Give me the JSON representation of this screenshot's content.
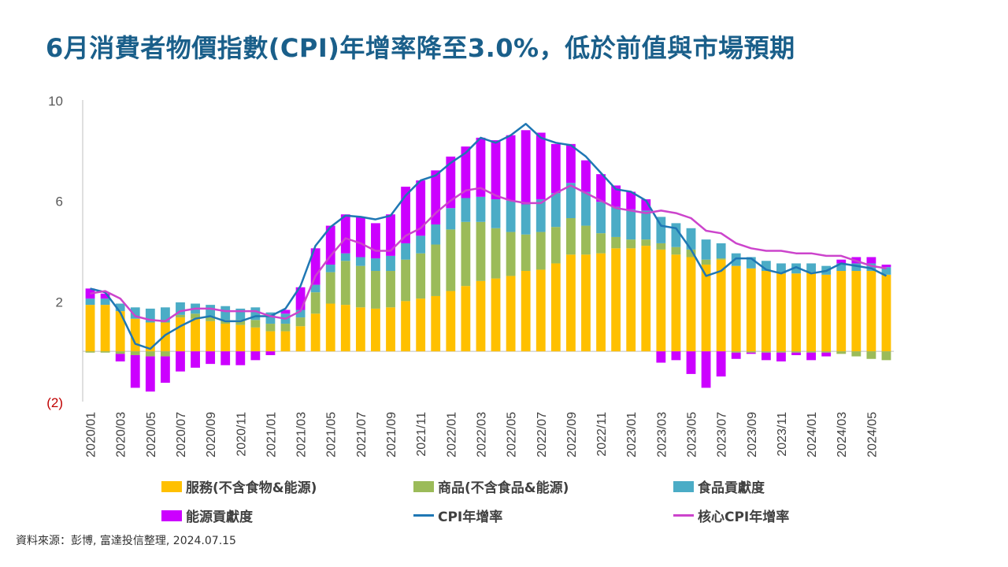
{
  "title": "6月消費者物價指數(CPI)年增率降至3.0%，低於前值與市場預期",
  "source": "資料來源：彭博, 富達投信整理, 2024.07.15",
  "colors": {
    "services": "#ffc000",
    "goods": "#9bbb59",
    "food": "#4bacc6",
    "energy": "#cc00ff",
    "cpi": "#1f77b4",
    "core": "#cc44cc",
    "negative_tick": "#c00000"
  },
  "legend": [
    {
      "key": "services",
      "label": "服務(不含食物&能源)",
      "kind": "bar"
    },
    {
      "key": "goods",
      "label": "商品(不含食品&能源)",
      "kind": "bar"
    },
    {
      "key": "food",
      "label": "食品貢獻度",
      "kind": "bar"
    },
    {
      "key": "energy",
      "label": "能源貢獻度",
      "kind": "bar"
    },
    {
      "key": "cpi",
      "label": "CPI年增率",
      "kind": "line"
    },
    {
      "key": "core",
      "label": "核心CPI年增率",
      "kind": "line"
    }
  ],
  "chart_data": {
    "type": "bar",
    "stacked": true,
    "title": "",
    "xlabel": "",
    "ylabel": "",
    "ylim": [
      -2,
      10
    ],
    "y_ticks": [
      {
        "value": 10,
        "label": "10"
      },
      {
        "value": 6,
        "label": "6"
      },
      {
        "value": 2,
        "label": "2"
      },
      {
        "value": -2,
        "label": "(2)"
      }
    ],
    "x_tick_labels": [
      "2020/01",
      "2020/03",
      "2020/05",
      "2020/07",
      "2020/09",
      "2020/11",
      "2021/01",
      "2021/03",
      "2021/05",
      "2021/07",
      "2021/09",
      "2021/11",
      "2022/01",
      "2022/03",
      "2022/05",
      "2022/07",
      "2022/09",
      "2022/11",
      "2023/01",
      "2023/03",
      "2023/05",
      "2023/07",
      "2023/09",
      "2023/11",
      "2024/01",
      "2024/03",
      "2024/05"
    ],
    "categories": [
      "2020/01",
      "2020/02",
      "2020/03",
      "2020/04",
      "2020/05",
      "2020/06",
      "2020/07",
      "2020/08",
      "2020/09",
      "2020/10",
      "2020/11",
      "2020/12",
      "2021/01",
      "2021/02",
      "2021/03",
      "2021/04",
      "2021/05",
      "2021/06",
      "2021/07",
      "2021/08",
      "2021/09",
      "2021/10",
      "2021/11",
      "2021/12",
      "2022/01",
      "2022/02",
      "2022/03",
      "2022/04",
      "2022/05",
      "2022/06",
      "2022/07",
      "2022/08",
      "2022/09",
      "2022/10",
      "2022/11",
      "2022/12",
      "2023/01",
      "2023/02",
      "2023/03",
      "2023/04",
      "2023/05",
      "2023/06",
      "2023/07",
      "2023/08",
      "2023/09",
      "2023/10",
      "2023/11",
      "2023/12",
      "2024/01",
      "2024/02",
      "2024/03",
      "2024/04",
      "2024/05",
      "2024/06"
    ],
    "series": [
      {
        "name": "服務(不含食物&能源)",
        "key": "services",
        "kind": "bar",
        "values": [
          1.85,
          1.85,
          1.6,
          1.3,
          1.15,
          1.15,
          1.35,
          1.3,
          1.2,
          1.1,
          1.05,
          0.95,
          0.8,
          0.8,
          1.0,
          1.5,
          1.9,
          1.85,
          1.75,
          1.7,
          1.75,
          2.0,
          2.1,
          2.2,
          2.4,
          2.6,
          2.8,
          2.9,
          3.0,
          3.2,
          3.25,
          3.5,
          3.85,
          3.85,
          3.9,
          4.1,
          4.1,
          4.2,
          4.05,
          3.85,
          3.75,
          3.45,
          3.65,
          3.4,
          3.3,
          3.2,
          3.1,
          3.1,
          3.15,
          3.05,
          3.2,
          3.2,
          3.2,
          3.05
        ]
      },
      {
        "name": "商品(不含食品&能源)",
        "key": "goods",
        "kind": "bar",
        "values": [
          -0.05,
          -0.05,
          -0.1,
          -0.15,
          -0.2,
          -0.2,
          0.1,
          0.2,
          0.2,
          0.15,
          0.2,
          0.3,
          0.3,
          0.3,
          0.35,
          0.85,
          1.25,
          1.75,
          1.65,
          1.5,
          1.45,
          1.65,
          1.8,
          2.05,
          2.45,
          2.55,
          2.35,
          2.0,
          1.75,
          1.45,
          1.5,
          1.45,
          1.45,
          1.15,
          0.8,
          0.45,
          0.35,
          0.25,
          0.25,
          0.3,
          0.3,
          0.2,
          0.05,
          -0.05,
          -0.05,
          -0.05,
          -0.05,
          -0.05,
          -0.05,
          -0.05,
          -0.1,
          -0.2,
          -0.3,
          -0.35
        ]
      },
      {
        "name": "食品貢獻度",
        "key": "food",
        "kind": "bar",
        "values": [
          0.25,
          0.25,
          0.3,
          0.45,
          0.55,
          0.6,
          0.5,
          0.4,
          0.45,
          0.55,
          0.45,
          0.5,
          0.45,
          0.4,
          0.3,
          0.3,
          0.3,
          0.3,
          0.35,
          0.5,
          0.6,
          0.65,
          0.7,
          0.8,
          0.85,
          0.95,
          1.0,
          1.15,
          1.25,
          1.2,
          1.3,
          1.35,
          1.4,
          1.35,
          1.25,
          1.2,
          1.2,
          1.15,
          1.05,
          0.95,
          0.85,
          0.8,
          0.6,
          0.5,
          0.45,
          0.4,
          0.4,
          0.4,
          0.35,
          0.35,
          0.3,
          0.3,
          0.3,
          0.3
        ]
      },
      {
        "name": "能源貢獻度",
        "key": "energy",
        "kind": "bar",
        "values": [
          0.4,
          0.2,
          -0.3,
          -1.3,
          -1.4,
          -1.05,
          -0.8,
          -0.65,
          -0.5,
          -0.55,
          -0.55,
          -0.35,
          -0.15,
          0.15,
          0.9,
          1.45,
          1.55,
          1.55,
          1.6,
          1.4,
          1.65,
          2.25,
          2.2,
          2.15,
          2.05,
          2.05,
          2.35,
          2.35,
          2.6,
          2.95,
          2.65,
          1.95,
          1.55,
          1.25,
          1.1,
          0.85,
          0.7,
          0.45,
          -0.45,
          -0.35,
          -0.9,
          -1.45,
          -1.0,
          -0.25,
          -0.05,
          -0.3,
          -0.35,
          -0.1,
          -0.3,
          -0.15,
          0.15,
          0.25,
          0.25,
          0.1
        ]
      },
      {
        "name": "CPI年增率",
        "key": "cpi",
        "kind": "line",
        "values": [
          2.5,
          2.35,
          1.55,
          0.3,
          0.1,
          0.65,
          1.0,
          1.3,
          1.4,
          1.2,
          1.2,
          1.4,
          1.4,
          1.7,
          2.6,
          4.2,
          4.95,
          5.4,
          5.35,
          5.25,
          5.4,
          6.2,
          6.8,
          7.0,
          7.5,
          7.9,
          8.5,
          8.3,
          8.6,
          9.05,
          8.5,
          8.3,
          8.2,
          7.75,
          7.1,
          6.45,
          6.35,
          6.0,
          5.0,
          4.9,
          4.05,
          3.0,
          3.2,
          3.7,
          3.7,
          3.25,
          3.1,
          3.35,
          3.1,
          3.2,
          3.5,
          3.4,
          3.3,
          3.0
        ]
      },
      {
        "name": "核心CPI年增率",
        "key": "core",
        "kind": "line",
        "values": [
          2.3,
          2.4,
          2.1,
          1.4,
          1.25,
          1.2,
          1.6,
          1.7,
          1.7,
          1.6,
          1.6,
          1.6,
          1.4,
          1.3,
          1.6,
          3.0,
          3.8,
          4.5,
          4.3,
          4.0,
          4.0,
          4.6,
          4.9,
          5.5,
          6.0,
          6.4,
          6.5,
          6.2,
          6.0,
          5.9,
          5.9,
          6.3,
          6.6,
          6.3,
          6.0,
          5.7,
          5.6,
          5.5,
          5.6,
          5.5,
          5.3,
          4.8,
          4.7,
          4.3,
          4.1,
          4.0,
          4.0,
          3.9,
          3.9,
          3.8,
          3.8,
          3.6,
          3.4,
          3.3
        ]
      }
    ]
  }
}
